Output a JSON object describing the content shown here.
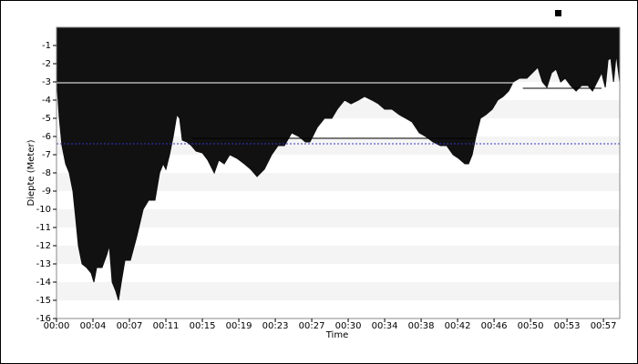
{
  "chart_data": {
    "type": "area",
    "x_label": "Time",
    "y_label": "Diepte (Meter)",
    "x": [
      0,
      0.1,
      0.29,
      0.57,
      0.95,
      1.33,
      1.71,
      2.0,
      2.28,
      2.66,
      3.14,
      3.61,
      3.9,
      4.18,
      4.75,
      5.23,
      5.51,
      5.8,
      6.18,
      6.46,
      6.75,
      7.13,
      7.7,
      8.36,
      9.03,
      9.6,
      10.26,
      10.74,
      11.12,
      11.4,
      11.78,
      12.16,
      12.54,
      12.83,
      13.11,
      13.59,
      14.06,
      14.54,
      15.2,
      15.77,
      16.44,
      16.91,
      17.48,
      18.05,
      18.81,
      19.57,
      20.24,
      20.9,
      21.66,
      22.42,
      23.09,
      23.75,
      24.51,
      25.27,
      25.94,
      26.41,
      27.17,
      27.93,
      28.69,
      29.26,
      30.02,
      30.69,
      31.45,
      32.11,
      32.87,
      33.54,
      34.2,
      34.96,
      35.72,
      36.39,
      37.05,
      37.81,
      38.48,
      39.24,
      40.0,
      40.66,
      41.33,
      41.9,
      42.56,
      42.94,
      43.32,
      43.7,
      44.18,
      44.75,
      45.41,
      45.98,
      46.55,
      47.12,
      47.6,
      48.26,
      49.02,
      49.59,
      50.16,
      50.64,
      51.11,
      51.59,
      52.06,
      52.54,
      53.01,
      53.58,
      54.15,
      54.72,
      55.39,
      55.86,
      56.34,
      56.81,
      57.19,
      57.48,
      57.76,
      58.05,
      58.33,
      58.7
    ],
    "series": [
      {
        "color": "#111111",
        "values": [
          -3.0,
          -3.5,
          -5.0,
          -6.5,
          -7.5,
          -8.0,
          -9.0,
          -10.5,
          -12.0,
          -13.0,
          -13.2,
          -13.5,
          -14.0,
          -13.2,
          -13.2,
          -12.5,
          -12.0,
          -14.0,
          -14.5,
          -15.0,
          -14.0,
          -12.8,
          -12.8,
          -11.5,
          -10.0,
          -9.5,
          -9.5,
          -8.0,
          -7.5,
          -7.8,
          -7.0,
          -6.0,
          -4.8,
          -5.0,
          -6.2,
          -6.3,
          -6.5,
          -6.8,
          -6.9,
          -7.3,
          -8.0,
          -7.3,
          -7.5,
          -7.0,
          -7.2,
          -7.5,
          -7.8,
          -8.2,
          -7.8,
          -7.0,
          -6.5,
          -6.5,
          -5.8,
          -6.0,
          -6.3,
          -6.3,
          -5.5,
          -5.0,
          -5.0,
          -4.5,
          -4.0,
          -4.2,
          -4.0,
          -3.8,
          -4.0,
          -4.2,
          -4.5,
          -4.5,
          -4.8,
          -5.0,
          -5.2,
          -5.8,
          -6.0,
          -6.3,
          -6.5,
          -6.5,
          -7.0,
          -7.2,
          -7.5,
          -7.5,
          -7.0,
          -6.0,
          -5.0,
          -4.8,
          -4.5,
          -4.0,
          -3.8,
          -3.5,
          -3.0,
          -2.8,
          -2.8,
          -2.5,
          -2.2,
          -3.0,
          -3.3,
          -2.5,
          -2.3,
          -3.0,
          -2.8,
          -3.2,
          -3.5,
          -3.2,
          -3.2,
          -3.5,
          -3.0,
          -2.5,
          -3.3,
          -1.8,
          -1.7,
          -3.0,
          -1.5,
          -3.0
        ]
      }
    ],
    "reference_lines": [
      {
        "y": -3.05,
        "x": [
          0,
          48.6
        ],
        "color": "#ffffff"
      },
      {
        "y": -6.1,
        "x": [
          14.2,
          43.7
        ],
        "color": "#000000"
      },
      {
        "y": -3.35,
        "x": [
          48.6,
          56.8
        ],
        "color": "#000000"
      },
      {
        "y": -6.4,
        "x": [
          0,
          58.7
        ],
        "color": "#3333cc",
        "dashed": true
      }
    ],
    "xlim": [
      0,
      58.7
    ],
    "ylim": [
      -16,
      0
    ],
    "xticks": [
      {
        "value": 0,
        "label": "00:00"
      },
      {
        "value": 3.8,
        "label": "00:04"
      },
      {
        "value": 7.6,
        "label": "00:07"
      },
      {
        "value": 11.4,
        "label": "00:11"
      },
      {
        "value": 15.2,
        "label": "00:15"
      },
      {
        "value": 19.0,
        "label": "00:19"
      },
      {
        "value": 22.8,
        "label": "00:23"
      },
      {
        "value": 26.6,
        "label": "00:27"
      },
      {
        "value": 30.4,
        "label": "00:30"
      },
      {
        "value": 34.2,
        "label": "00:34"
      },
      {
        "value": 38.0,
        "label": "00:38"
      },
      {
        "value": 41.8,
        "label": "00:42"
      },
      {
        "value": 45.6,
        "label": "00:46"
      },
      {
        "value": 49.4,
        "label": "00:50"
      },
      {
        "value": 53.2,
        "label": "00:53"
      },
      {
        "value": 57.0,
        "label": "00:57"
      }
    ],
    "yticks": [
      -1,
      -2,
      -3,
      -4,
      -5,
      -6,
      -7,
      -8,
      -9,
      -10,
      -11,
      -12,
      -13,
      -14,
      -15,
      -16
    ],
    "grid_bands": true
  }
}
